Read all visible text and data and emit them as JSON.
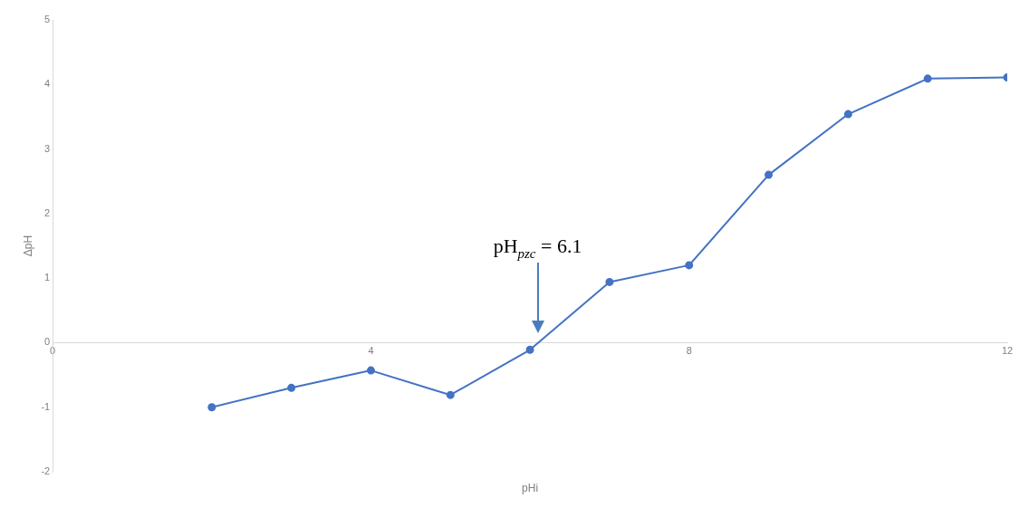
{
  "chart_data": {
    "type": "line",
    "xlabel": "pHi",
    "ylabel": "ΔpH",
    "x": [
      2,
      3,
      4,
      5,
      6,
      7,
      8,
      9,
      10,
      11,
      12
    ],
    "series": [
      {
        "color": "#4472c4",
        "values": [
          -1.0,
          -0.7,
          -0.43,
          -0.81,
          -0.11,
          0.94,
          1.2,
          2.6,
          3.54,
          4.09,
          4.11
        ]
      }
    ],
    "xlim": [
      0,
      12
    ],
    "xticks": [
      0,
      4,
      8,
      12
    ],
    "ylim": [
      -2,
      5
    ],
    "yticks": [
      -2,
      -1,
      0,
      1,
      2,
      3,
      4,
      5
    ],
    "annotations": [
      "pH$_{pzc}$ = 6.1"
    ],
    "marker": "circle",
    "line_style": "solid",
    "grid": false,
    "legend": false
  }
}
